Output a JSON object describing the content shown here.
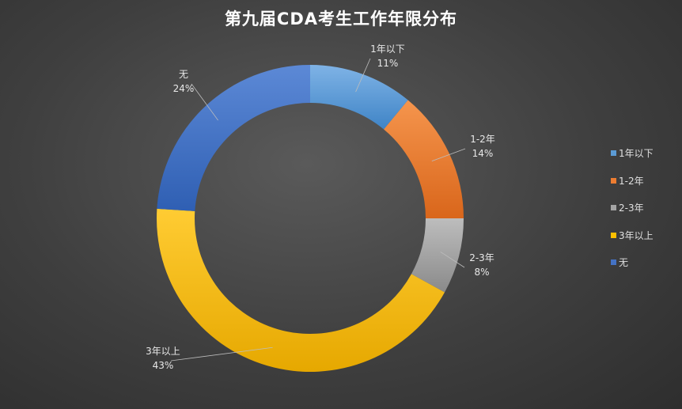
{
  "chart_data": {
    "type": "pie",
    "title": "第九届CDA考生工作年限分布",
    "categories": [
      "1年以下",
      "1-2年",
      "2-3年",
      "3年以上",
      "无"
    ],
    "values": [
      11,
      14,
      8,
      43,
      24
    ],
    "value_labels": [
      "11%",
      "14%",
      "8%",
      "43%",
      "24%"
    ],
    "colors": [
      "#5b9bd5",
      "#ed7d31",
      "#a5a5a5",
      "#ffc000",
      "#4472c4"
    ],
    "donut": true,
    "legend_position": "right"
  }
}
